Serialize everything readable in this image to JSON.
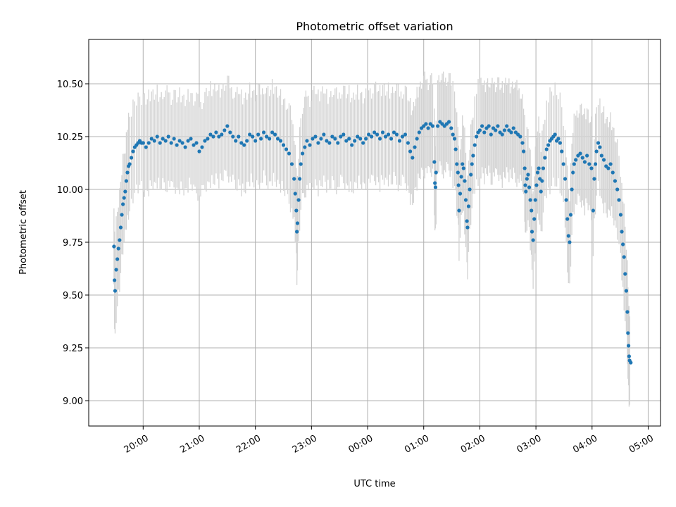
{
  "chart_data": {
    "type": "scatter",
    "title": "Photometric offset variation",
    "xlabel": "UTC time",
    "ylabel": "Photometric offset",
    "x_range_hours": [
      -4.97,
      5.22
    ],
    "ylim": [
      8.88,
      10.71
    ],
    "x_ticks": [
      {
        "hour": -4.0,
        "label": "20:00"
      },
      {
        "hour": -3.0,
        "label": "21:00"
      },
      {
        "hour": -2.0,
        "label": "22:00"
      },
      {
        "hour": -1.0,
        "label": "23:00"
      },
      {
        "hour": 0.0,
        "label": "00:00"
      },
      {
        "hour": 1.0,
        "label": "01:00"
      },
      {
        "hour": 2.0,
        "label": "02:00"
      },
      {
        "hour": 3.0,
        "label": "03:00"
      },
      {
        "hour": 4.0,
        "label": "04:00"
      },
      {
        "hour": 5.0,
        "label": "05:00"
      }
    ],
    "y_ticks": [
      {
        "value": 9.0,
        "label": "9.00"
      },
      {
        "value": 9.25,
        "label": "9.25"
      },
      {
        "value": 9.5,
        "label": "9.50"
      },
      {
        "value": 9.75,
        "label": "9.75"
      },
      {
        "value": 10.0,
        "label": "10.00"
      },
      {
        "value": 10.25,
        "label": "10.25"
      },
      {
        "value": 10.5,
        "label": "10.50"
      }
    ],
    "grid": true,
    "marker_color": "#1f77b4",
    "errorbar_color": "#d3d3d3",
    "error_halfwidth": 0.18,
    "points": [
      [
        -4.52,
        9.73
      ],
      [
        -4.51,
        9.57
      ],
      [
        -4.5,
        9.52
      ],
      [
        -4.48,
        9.62
      ],
      [
        -4.46,
        9.67
      ],
      [
        -4.44,
        9.72
      ],
      [
        -4.42,
        9.76
      ],
      [
        -4.4,
        9.82
      ],
      [
        -4.38,
        9.88
      ],
      [
        -4.36,
        9.93
      ],
      [
        -4.34,
        9.96
      ],
      [
        -4.32,
        9.99
      ],
      [
        -4.3,
        10.04
      ],
      [
        -4.28,
        10.08
      ],
      [
        -4.26,
        10.11
      ],
      [
        -4.24,
        10.12
      ],
      [
        -4.21,
        10.15
      ],
      [
        -4.18,
        10.18
      ],
      [
        -4.15,
        10.2
      ],
      [
        -4.12,
        10.21
      ],
      [
        -4.09,
        10.22
      ],
      [
        -4.06,
        10.23
      ],
      [
        -4.03,
        10.22
      ],
      [
        -4.0,
        10.22
      ],
      [
        -3.95,
        10.2
      ],
      [
        -3.9,
        10.22
      ],
      [
        -3.85,
        10.24
      ],
      [
        -3.8,
        10.23
      ],
      [
        -3.75,
        10.25
      ],
      [
        -3.7,
        10.22
      ],
      [
        -3.65,
        10.24
      ],
      [
        -3.6,
        10.23
      ],
      [
        -3.55,
        10.25
      ],
      [
        -3.5,
        10.22
      ],
      [
        -3.45,
        10.24
      ],
      [
        -3.4,
        10.21
      ],
      [
        -3.35,
        10.23
      ],
      [
        -3.3,
        10.22
      ],
      [
        -3.25,
        10.2
      ],
      [
        -3.2,
        10.23
      ],
      [
        -3.15,
        10.24
      ],
      [
        -3.1,
        10.21
      ],
      [
        -3.05,
        10.22
      ],
      [
        -3.0,
        10.18
      ],
      [
        -2.95,
        10.2
      ],
      [
        -2.9,
        10.23
      ],
      [
        -2.85,
        10.24
      ],
      [
        -2.8,
        10.26
      ],
      [
        -2.75,
        10.25
      ],
      [
        -2.7,
        10.27
      ],
      [
        -2.65,
        10.25
      ],
      [
        -2.6,
        10.26
      ],
      [
        -2.55,
        10.28
      ],
      [
        -2.5,
        10.3
      ],
      [
        -2.45,
        10.27
      ],
      [
        -2.4,
        10.25
      ],
      [
        -2.35,
        10.23
      ],
      [
        -2.3,
        10.25
      ],
      [
        -2.25,
        10.22
      ],
      [
        -2.2,
        10.21
      ],
      [
        -2.15,
        10.23
      ],
      [
        -2.1,
        10.26
      ],
      [
        -2.05,
        10.25
      ],
      [
        -2.0,
        10.23
      ],
      [
        -1.95,
        10.26
      ],
      [
        -1.9,
        10.24
      ],
      [
        -1.85,
        10.27
      ],
      [
        -1.8,
        10.25
      ],
      [
        -1.75,
        10.24
      ],
      [
        -1.7,
        10.27
      ],
      [
        -1.65,
        10.26
      ],
      [
        -1.6,
        10.24
      ],
      [
        -1.55,
        10.23
      ],
      [
        -1.5,
        10.21
      ],
      [
        -1.45,
        10.19
      ],
      [
        -1.4,
        10.17
      ],
      [
        -1.35,
        10.12
      ],
      [
        -1.31,
        10.05
      ],
      [
        -1.29,
        9.98
      ],
      [
        -1.27,
        9.9
      ],
      [
        -1.26,
        9.8
      ],
      [
        -1.25,
        9.84
      ],
      [
        -1.23,
        9.95
      ],
      [
        -1.21,
        10.05
      ],
      [
        -1.19,
        10.12
      ],
      [
        -1.16,
        10.17
      ],
      [
        -1.12,
        10.2
      ],
      [
        -1.08,
        10.23
      ],
      [
        -1.03,
        10.21
      ],
      [
        -0.98,
        10.24
      ],
      [
        -0.93,
        10.25
      ],
      [
        -0.88,
        10.22
      ],
      [
        -0.83,
        10.24
      ],
      [
        -0.78,
        10.26
      ],
      [
        -0.73,
        10.23
      ],
      [
        -0.68,
        10.22
      ],
      [
        -0.63,
        10.25
      ],
      [
        -0.58,
        10.24
      ],
      [
        -0.53,
        10.22
      ],
      [
        -0.48,
        10.25
      ],
      [
        -0.43,
        10.26
      ],
      [
        -0.38,
        10.23
      ],
      [
        -0.33,
        10.24
      ],
      [
        -0.28,
        10.21
      ],
      [
        -0.23,
        10.23
      ],
      [
        -0.18,
        10.25
      ],
      [
        -0.13,
        10.24
      ],
      [
        -0.08,
        10.22
      ],
      [
        -0.03,
        10.24
      ],
      [
        0.02,
        10.26
      ],
      [
        0.07,
        10.25
      ],
      [
        0.12,
        10.27
      ],
      [
        0.17,
        10.26
      ],
      [
        0.22,
        10.24
      ],
      [
        0.27,
        10.27
      ],
      [
        0.32,
        10.25
      ],
      [
        0.37,
        10.26
      ],
      [
        0.42,
        10.24
      ],
      [
        0.47,
        10.27
      ],
      [
        0.52,
        10.26
      ],
      [
        0.57,
        10.23
      ],
      [
        0.62,
        10.25
      ],
      [
        0.67,
        10.26
      ],
      [
        0.72,
        10.22
      ],
      [
        0.76,
        10.18
      ],
      [
        0.8,
        10.15
      ],
      [
        0.84,
        10.2
      ],
      [
        0.88,
        10.24
      ],
      [
        0.92,
        10.27
      ],
      [
        0.96,
        10.29
      ],
      [
        1.0,
        10.3
      ],
      [
        1.04,
        10.31
      ],
      [
        1.08,
        10.29
      ],
      [
        1.12,
        10.31
      ],
      [
        1.16,
        10.3
      ],
      [
        1.19,
        10.13
      ],
      [
        1.2,
        10.03
      ],
      [
        1.21,
        10.01
      ],
      [
        1.22,
        10.08
      ],
      [
        1.25,
        10.3
      ],
      [
        1.29,
        10.32
      ],
      [
        1.33,
        10.31
      ],
      [
        1.37,
        10.3
      ],
      [
        1.41,
        10.31
      ],
      [
        1.45,
        10.32
      ],
      [
        1.49,
        10.29
      ],
      [
        1.52,
        10.26
      ],
      [
        1.55,
        10.24
      ],
      [
        1.57,
        10.19
      ],
      [
        1.59,
        10.12
      ],
      [
        1.61,
        10.08
      ],
      [
        1.62,
        10.02
      ],
      [
        1.63,
        9.9
      ],
      [
        1.65,
        9.98
      ],
      [
        1.67,
        10.06
      ],
      [
        1.69,
        10.12
      ],
      [
        1.71,
        10.1
      ],
      [
        1.73,
        10.04
      ],
      [
        1.75,
        9.95
      ],
      [
        1.77,
        9.85
      ],
      [
        1.78,
        9.82
      ],
      [
        1.8,
        9.92
      ],
      [
        1.82,
        10.0
      ],
      [
        1.84,
        10.07
      ],
      [
        1.86,
        10.12
      ],
      [
        1.88,
        10.16
      ],
      [
        1.91,
        10.21
      ],
      [
        1.94,
        10.25
      ],
      [
        1.97,
        10.27
      ],
      [
        2.0,
        10.28
      ],
      [
        2.04,
        10.3
      ],
      [
        2.08,
        10.27
      ],
      [
        2.12,
        10.29
      ],
      [
        2.16,
        10.3
      ],
      [
        2.2,
        10.26
      ],
      [
        2.24,
        10.29
      ],
      [
        2.28,
        10.28
      ],
      [
        2.32,
        10.3
      ],
      [
        2.36,
        10.27
      ],
      [
        2.4,
        10.26
      ],
      [
        2.44,
        10.28
      ],
      [
        2.48,
        10.3
      ],
      [
        2.52,
        10.28
      ],
      [
        2.56,
        10.27
      ],
      [
        2.6,
        10.29
      ],
      [
        2.64,
        10.27
      ],
      [
        2.68,
        10.26
      ],
      [
        2.72,
        10.25
      ],
      [
        2.76,
        10.22
      ],
      [
        2.78,
        10.18
      ],
      [
        2.8,
        10.1
      ],
      [
        2.81,
        10.02
      ],
      [
        2.82,
        9.99
      ],
      [
        2.84,
        10.05
      ],
      [
        2.86,
        10.07
      ],
      [
        2.88,
        10.01
      ],
      [
        2.9,
        9.95
      ],
      [
        2.92,
        9.9
      ],
      [
        2.93,
        9.8
      ],
      [
        2.95,
        9.76
      ],
      [
        2.97,
        9.86
      ],
      [
        2.99,
        9.95
      ],
      [
        3.01,
        10.02
      ],
      [
        3.03,
        10.08
      ],
      [
        3.05,
        10.1
      ],
      [
        3.07,
        10.05
      ],
      [
        3.09,
        9.99
      ],
      [
        3.11,
        10.04
      ],
      [
        3.13,
        10.1
      ],
      [
        3.16,
        10.15
      ],
      [
        3.19,
        10.19
      ],
      [
        3.22,
        10.21
      ],
      [
        3.25,
        10.23
      ],
      [
        3.28,
        10.24
      ],
      [
        3.31,
        10.25
      ],
      [
        3.34,
        10.26
      ],
      [
        3.37,
        10.23
      ],
      [
        3.4,
        10.24
      ],
      [
        3.43,
        10.22
      ],
      [
        3.46,
        10.18
      ],
      [
        3.49,
        10.12
      ],
      [
        3.52,
        10.05
      ],
      [
        3.54,
        9.95
      ],
      [
        3.56,
        9.86
      ],
      [
        3.58,
        9.78
      ],
      [
        3.6,
        9.75
      ],
      [
        3.62,
        9.88
      ],
      [
        3.64,
        10.0
      ],
      [
        3.66,
        10.08
      ],
      [
        3.68,
        10.12
      ],
      [
        3.71,
        10.14
      ],
      [
        3.75,
        10.16
      ],
      [
        3.79,
        10.17
      ],
      [
        3.83,
        10.15
      ],
      [
        3.87,
        10.13
      ],
      [
        3.91,
        10.16
      ],
      [
        3.95,
        10.12
      ],
      [
        3.99,
        10.1
      ],
      [
        4.02,
        9.9
      ],
      [
        4.04,
        10.05
      ],
      [
        4.06,
        10.12
      ],
      [
        4.08,
        10.18
      ],
      [
        4.11,
        10.22
      ],
      [
        4.14,
        10.2
      ],
      [
        4.17,
        10.16
      ],
      [
        4.21,
        10.14
      ],
      [
        4.25,
        10.11
      ],
      [
        4.29,
        10.1
      ],
      [
        4.33,
        10.12
      ],
      [
        4.37,
        10.08
      ],
      [
        4.41,
        10.04
      ],
      [
        4.45,
        10.0
      ],
      [
        4.48,
        9.95
      ],
      [
        4.51,
        9.88
      ],
      [
        4.53,
        9.8
      ],
      [
        4.55,
        9.74
      ],
      [
        4.57,
        9.68
      ],
      [
        4.59,
        9.6
      ],
      [
        4.61,
        9.52
      ],
      [
        4.63,
        9.42
      ],
      [
        4.64,
        9.32
      ],
      [
        4.65,
        9.26
      ],
      [
        4.66,
        9.21
      ],
      [
        4.67,
        9.19
      ],
      [
        4.69,
        9.18
      ]
    ]
  }
}
